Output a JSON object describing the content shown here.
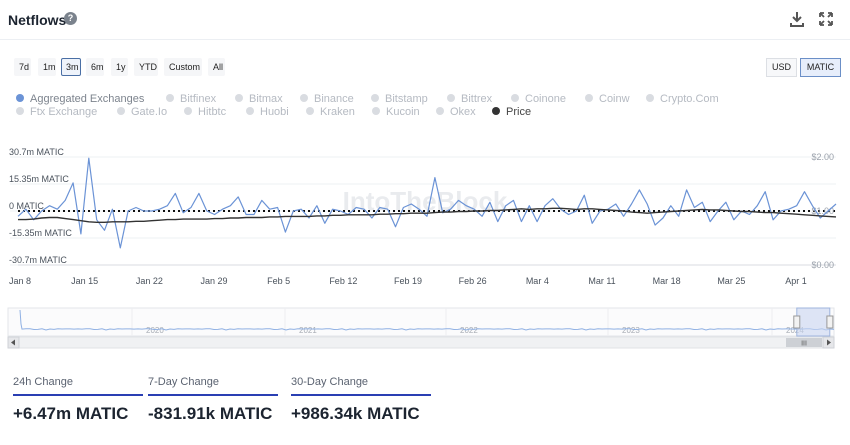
{
  "header": {
    "title": "Netflows",
    "help_icon": "question-circle-icon",
    "download_icon": "download-icon",
    "fullscreen_icon": "expand-icon"
  },
  "ranges": [
    "7d",
    "1m",
    "3m",
    "6m",
    "1y",
    "YTD",
    "Custom",
    "All"
  ],
  "active_range": "3m",
  "currencies": [
    "USD",
    "MATIC"
  ],
  "active_currency": "MATIC",
  "legend": [
    {
      "label": "Aggregated Exchanges",
      "active": true,
      "color": "#6b93d6"
    },
    {
      "label": "Bitfinex",
      "active": false
    },
    {
      "label": "Bitmax",
      "active": false
    },
    {
      "label": "Binance",
      "active": false
    },
    {
      "label": "Bitstamp",
      "active": false
    },
    {
      "label": "Bittrex",
      "active": false
    },
    {
      "label": "Coinone",
      "active": false
    },
    {
      "label": "Coinw",
      "active": false
    },
    {
      "label": "Crypto.Com",
      "active": false
    },
    {
      "label": "Ftx Exchange",
      "active": false
    },
    {
      "label": "Gate.Io",
      "active": false
    },
    {
      "label": "Hitbtc",
      "active": false
    },
    {
      "label": "Huobi",
      "active": false
    },
    {
      "label": "Kraken",
      "active": false
    },
    {
      "label": "Kucoin",
      "active": false
    },
    {
      "label": "Okex",
      "active": false
    },
    {
      "label": "Price",
      "active": true,
      "color": "#333333"
    }
  ],
  "watermark": "IntoTheBlock",
  "chart_data": {
    "type": "line",
    "y_ticks_left": [
      "30.7m MATIC",
      "15.35m MATIC",
      "0 MATIC",
      "-15.35m MATIC",
      "-30.7m MATIC"
    ],
    "y_ticks_right": [
      "$2.00",
      "$1.00",
      "$0.00"
    ],
    "x_ticks": [
      "Jan 8",
      "Jan 15",
      "Jan 22",
      "Jan 29",
      "Feb 5",
      "Feb 12",
      "Feb 19",
      "Feb 26",
      "Mar 4",
      "Mar 11",
      "Mar 18",
      "Mar 25",
      "Apr 1"
    ],
    "ylim_left": [
      -30.7,
      30.7
    ],
    "ylim_right": [
      0,
      2
    ],
    "series": [
      {
        "name": "Aggregated Exchanges",
        "color": "#6b93d6",
        "unit": "m MATIC",
        "values": [
          -3,
          1,
          -5,
          0,
          3,
          1,
          6,
          16,
          -13,
          30,
          -5,
          -11,
          1,
          -21,
          0,
          2,
          0,
          0,
          1,
          3,
          10,
          -1,
          2,
          10,
          0,
          -2,
          1,
          3,
          8,
          -2,
          -2,
          6,
          1,
          2,
          -12,
          0,
          1,
          -4,
          3,
          -7,
          1,
          0,
          -2,
          2,
          1,
          -4,
          2,
          1,
          -9,
          2,
          4,
          1,
          -3,
          19,
          -1,
          1,
          6,
          3,
          1,
          -3,
          5,
          -6,
          3,
          6,
          -6,
          3,
          -6,
          3,
          7,
          1,
          -2,
          0,
          9,
          -7,
          0,
          1,
          4,
          -3,
          4,
          12,
          4,
          -8,
          -4,
          3,
          -3,
          12,
          2,
          5,
          -6,
          0,
          5,
          -5,
          0,
          -2,
          3,
          11,
          -5,
          0,
          1,
          3,
          11,
          3,
          -4,
          0,
          4
        ]
      },
      {
        "name": "Price",
        "color": "#333333",
        "unit": "$",
        "values": [
          0.84,
          0.84,
          0.85,
          0.87,
          0.88,
          0.88,
          0.86,
          0.84,
          0.82,
          0.8,
          0.79,
          0.79,
          0.8,
          0.8,
          0.8,
          0.81,
          0.81,
          0.82,
          0.83,
          0.84,
          0.84,
          0.85,
          0.85,
          0.85,
          0.85,
          0.86,
          0.86,
          0.87,
          0.87,
          0.88,
          0.88,
          0.88,
          0.89,
          0.89,
          0.9,
          0.9,
          0.9,
          0.9,
          0.91,
          0.91,
          0.92,
          0.92,
          0.93,
          0.93,
          0.93,
          0.93,
          0.94,
          0.94,
          0.95,
          0.95,
          0.96,
          0.96,
          0.96,
          0.97,
          0.98,
          0.98,
          0.99,
          0.99,
          1,
          1,
          1.01,
          1.01,
          1.02,
          1.03,
          1.04,
          1.03,
          1.04,
          1.04,
          1.05,
          1.05,
          1.04,
          1.03,
          1.04,
          1.04,
          1.03,
          1.02,
          1.01,
          1,
          0.98,
          0.97,
          0.96,
          0.97,
          0.98,
          0.99,
          1,
          1.01,
          1.02,
          1.03,
          1.02,
          1.02,
          1.01,
          1,
          0.99,
          0.99,
          0.98,
          0.97,
          0.97,
          0.96,
          0.95,
          0.94,
          0.93,
          0.92,
          0.91,
          0.9,
          0.89
        ]
      }
    ]
  },
  "navigator": {
    "year_labels": [
      "2020",
      "2021",
      "2022",
      "2023",
      "2024"
    ],
    "selection_start": 0.955,
    "selection_end": 0.995,
    "grip_label": "III"
  },
  "stats": [
    {
      "label": "24h Change",
      "value": "+6.47m MATIC"
    },
    {
      "label": "7-Day Change",
      "value": "-831.91k MATIC"
    },
    {
      "label": "30-Day Change",
      "value": "+986.34k MATIC"
    }
  ]
}
